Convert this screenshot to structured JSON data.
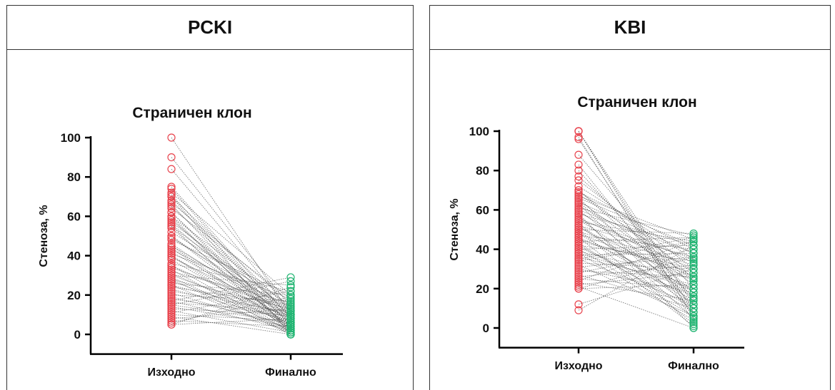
{
  "panels": [
    {
      "title": "PCKI",
      "chart_data": {
        "type": "scatter",
        "title": "Страничен клон",
        "xlabel": "",
        "ylabel": "Стеноза, %",
        "categories": [
          "Изходно",
          "Финално"
        ],
        "yticks": [
          0,
          20,
          40,
          60,
          80,
          100
        ],
        "ylim": [
          -10,
          100
        ],
        "grid": false,
        "connection": "paired dotted lines between Изходно and Финално",
        "colors": {
          "initial": "#e8434d",
          "final": "#22b573",
          "line": "#555555"
        },
        "pairs": [
          [
            100,
            10
          ],
          [
            90,
            14
          ],
          [
            84,
            12
          ],
          [
            75,
            8
          ],
          [
            74,
            6
          ],
          [
            72,
            20
          ],
          [
            71,
            4
          ],
          [
            70,
            12
          ],
          [
            68,
            9
          ],
          [
            67,
            16
          ],
          [
            66,
            3
          ],
          [
            65,
            10
          ],
          [
            64,
            18
          ],
          [
            62,
            5
          ],
          [
            60,
            14
          ],
          [
            59,
            2
          ],
          [
            58,
            8
          ],
          [
            57,
            12
          ],
          [
            56,
            6
          ],
          [
            55,
            10
          ],
          [
            54,
            3
          ],
          [
            52,
            15
          ],
          [
            50,
            8
          ],
          [
            50,
            4
          ],
          [
            49,
            12
          ],
          [
            48,
            20
          ],
          [
            46,
            6
          ],
          [
            45,
            10
          ],
          [
            44,
            2
          ],
          [
            43,
            14
          ],
          [
            42,
            7
          ],
          [
            41,
            18
          ],
          [
            40,
            5
          ],
          [
            39,
            10
          ],
          [
            38,
            3
          ],
          [
            36,
            22
          ],
          [
            35,
            8
          ],
          [
            34,
            12
          ],
          [
            33,
            0
          ],
          [
            32,
            16
          ],
          [
            31,
            5
          ],
          [
            30,
            25
          ],
          [
            30,
            9
          ],
          [
            29,
            2
          ],
          [
            28,
            13
          ],
          [
            27,
            6
          ],
          [
            26,
            20
          ],
          [
            25,
            10
          ],
          [
            25,
            1
          ],
          [
            24,
            15
          ],
          [
            23,
            7
          ],
          [
            22,
            11
          ],
          [
            21,
            3
          ],
          [
            20,
            17
          ],
          [
            19,
            5
          ],
          [
            18,
            9
          ],
          [
            17,
            29
          ],
          [
            17,
            2
          ],
          [
            16,
            12
          ],
          [
            15,
            6
          ],
          [
            15,
            27
          ],
          [
            14,
            4
          ],
          [
            13,
            10
          ],
          [
            12,
            1
          ],
          [
            11,
            22
          ],
          [
            10,
            7
          ],
          [
            9,
            0
          ],
          [
            8,
            13
          ],
          [
            7,
            4
          ],
          [
            6,
            19
          ],
          [
            5,
            8
          ],
          [
            5,
            24
          ],
          [
            70,
            0
          ],
          [
            60,
            1
          ],
          [
            45,
            3
          ],
          [
            35,
            1
          ],
          [
            28,
            0
          ],
          [
            62,
            2
          ],
          [
            55,
            0
          ],
          [
            40,
            1
          ]
        ]
      }
    },
    {
      "title": "KBI",
      "chart_data": {
        "type": "scatter",
        "title": "Страничен клон",
        "xlabel": "",
        "ylabel": "Стеноза, %",
        "categories": [
          "Изходно",
          "Финално"
        ],
        "yticks": [
          0,
          20,
          40,
          60,
          80,
          100
        ],
        "ylim": [
          -10,
          100
        ],
        "grid": false,
        "connection": "paired dotted lines between Изходно and Финално",
        "colors": {
          "initial": "#e8434d",
          "final": "#22b573",
          "line": "#555555"
        },
        "pairs": [
          [
            100,
            5
          ],
          [
            100,
            8
          ],
          [
            100,
            12
          ],
          [
            97,
            3
          ],
          [
            96,
            6
          ],
          [
            88,
            20
          ],
          [
            83,
            10
          ],
          [
            80,
            15
          ],
          [
            77,
            25
          ],
          [
            75,
            30
          ],
          [
            72,
            35
          ],
          [
            70,
            18
          ],
          [
            69,
            40
          ],
          [
            68,
            28
          ],
          [
            67,
            45
          ],
          [
            66,
            12
          ],
          [
            65,
            22
          ],
          [
            64,
            38
          ],
          [
            63,
            8
          ],
          [
            62,
            33
          ],
          [
            61,
            47
          ],
          [
            60,
            15
          ],
          [
            59,
            26
          ],
          [
            58,
            42
          ],
          [
            57,
            5
          ],
          [
            56,
            30
          ],
          [
            55,
            18
          ],
          [
            54,
            44
          ],
          [
            53,
            10
          ],
          [
            52,
            36
          ],
          [
            51,
            24
          ],
          [
            50,
            48
          ],
          [
            50,
            2
          ],
          [
            49,
            32
          ],
          [
            48,
            14
          ],
          [
            47,
            40
          ],
          [
            46,
            20
          ],
          [
            45,
            28
          ],
          [
            44,
            46
          ],
          [
            43,
            8
          ],
          [
            42,
            34
          ],
          [
            41,
            16
          ],
          [
            40,
            42
          ],
          [
            39,
            25
          ],
          [
            38,
            4
          ],
          [
            37,
            38
          ],
          [
            36,
            22
          ],
          [
            35,
            12
          ],
          [
            34,
            44
          ],
          [
            33,
            30
          ],
          [
            32,
            6
          ],
          [
            31,
            36
          ],
          [
            30,
            18
          ],
          [
            29,
            26
          ],
          [
            28,
            40
          ],
          [
            27,
            10
          ],
          [
            26,
            32
          ],
          [
            25,
            20
          ],
          [
            24,
            44
          ],
          [
            23,
            14
          ],
          [
            22,
            28
          ],
          [
            21,
            0
          ],
          [
            20,
            36
          ],
          [
            20,
            22
          ],
          [
            12,
            30
          ],
          [
            9,
            42
          ],
          [
            58,
            0
          ],
          [
            46,
            1
          ],
          [
            38,
            20
          ],
          [
            64,
            16
          ],
          [
            55,
            35
          ],
          [
            48,
            26
          ],
          [
            42,
            10
          ],
          [
            35,
            46
          ],
          [
            60,
            38
          ],
          [
            70,
            24
          ],
          [
            52,
            12
          ],
          [
            44,
            30
          ],
          [
            66,
            42
          ],
          [
            40,
            6
          ]
        ]
      }
    }
  ]
}
